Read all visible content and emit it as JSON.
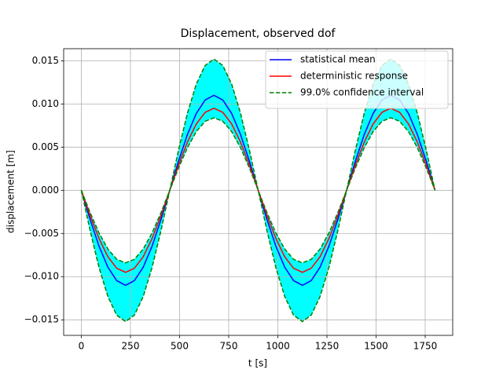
{
  "chart_data": {
    "type": "line",
    "title": "Displacement, observed dof",
    "x_label": "t [s]",
    "y_label": "displacement [m]",
    "x": [
      0,
      45,
      90,
      135,
      180,
      225,
      270,
      315,
      360,
      405,
      450,
      495,
      540,
      585,
      630,
      675,
      720,
      765,
      810,
      855,
      900,
      945,
      990,
      1035,
      1080,
      1125,
      1170,
      1215,
      1260,
      1305,
      1350,
      1395,
      1440,
      1485,
      1530,
      1575,
      1620,
      1665,
      1710,
      1755,
      1800
    ],
    "series": [
      {
        "name": "statistical mean",
        "color": "#0000ff",
        "values": [
          0,
          -0.0034,
          -0.00647,
          -0.0089,
          -0.01046,
          -0.011,
          -0.01046,
          -0.0089,
          -0.00647,
          -0.0034,
          0,
          0.0034,
          0.00647,
          0.0089,
          0.01046,
          0.011,
          0.01046,
          0.0089,
          0.00647,
          0.0034,
          0,
          -0.0034,
          -0.00647,
          -0.0089,
          -0.01046,
          -0.011,
          -0.01046,
          -0.0089,
          -0.00647,
          -0.0034,
          0,
          0.0034,
          0.00647,
          0.0089,
          0.01046,
          0.011,
          0.01046,
          0.0089,
          0.00647,
          0.0034,
          0
        ]
      },
      {
        "name": "deterministic response",
        "color": "#ff0000",
        "values": [
          0,
          -0.00294,
          -0.00559,
          -0.00769,
          -0.00903,
          -0.0095,
          -0.00903,
          -0.00769,
          -0.00559,
          -0.00294,
          0,
          0.00294,
          0.00559,
          0.00769,
          0.00903,
          0.0095,
          0.00903,
          0.00769,
          0.00559,
          0.00294,
          0,
          -0.00294,
          -0.00559,
          -0.00769,
          -0.00903,
          -0.0095,
          -0.00903,
          -0.00769,
          -0.00559,
          -0.00294,
          0,
          0.00294,
          0.00559,
          0.00769,
          0.00903,
          0.0095,
          0.00903,
          0.00769,
          0.00559,
          0.00294,
          0
        ]
      }
    ],
    "band": {
      "name": "99.0% confidence interval",
      "color": "#008000",
      "fill": "#00ffff",
      "lower": [
        0,
        -0.0047,
        -0.00894,
        -0.0123,
        -0.01446,
        -0.0152,
        -0.01446,
        -0.0123,
        -0.00894,
        -0.0047,
        0,
        0.0026,
        0.00494,
        0.0068,
        0.00799,
        0.0084,
        0.00799,
        0.0068,
        0.00494,
        0.0026,
        0,
        -0.0047,
        -0.00894,
        -0.0123,
        -0.01446,
        -0.0152,
        -0.01446,
        -0.0123,
        -0.00894,
        -0.0047,
        0,
        0.0026,
        0.00494,
        0.0068,
        0.00799,
        0.0084,
        0.00799,
        0.0068,
        0.00494,
        0.0026,
        0
      ],
      "upper": [
        0,
        -0.0026,
        -0.00494,
        -0.0068,
        -0.00799,
        -0.0084,
        -0.00799,
        -0.0068,
        -0.00494,
        -0.0026,
        0,
        0.0047,
        0.00894,
        0.0123,
        0.01446,
        0.0152,
        0.01446,
        0.0123,
        0.00894,
        0.0047,
        0,
        -0.0026,
        -0.00494,
        -0.0068,
        -0.00799,
        -0.0084,
        -0.00799,
        -0.0068,
        -0.00494,
        -0.0026,
        0,
        0.0047,
        0.00894,
        0.0123,
        0.01446,
        0.0152,
        0.01446,
        0.0123,
        0.00894,
        0.0047,
        0
      ]
    },
    "xlim": [
      -90,
      1890
    ],
    "ylim": [
      -0.0168,
      0.0164
    ],
    "xticks": [
      0,
      250,
      500,
      750,
      1000,
      1250,
      1500,
      1750
    ],
    "yticks": [
      {
        "value": -0.015,
        "label": "−0.015"
      },
      {
        "value": -0.01,
        "label": "−0.010"
      },
      {
        "value": -0.005,
        "label": "−0.005"
      },
      {
        "value": 0,
        "label": "0.000"
      },
      {
        "value": 0.005,
        "label": "0.005"
      },
      {
        "value": 0.01,
        "label": "0.010"
      },
      {
        "value": 0.015,
        "label": "0.015"
      }
    ],
    "grid": true,
    "legend": "upper right"
  }
}
